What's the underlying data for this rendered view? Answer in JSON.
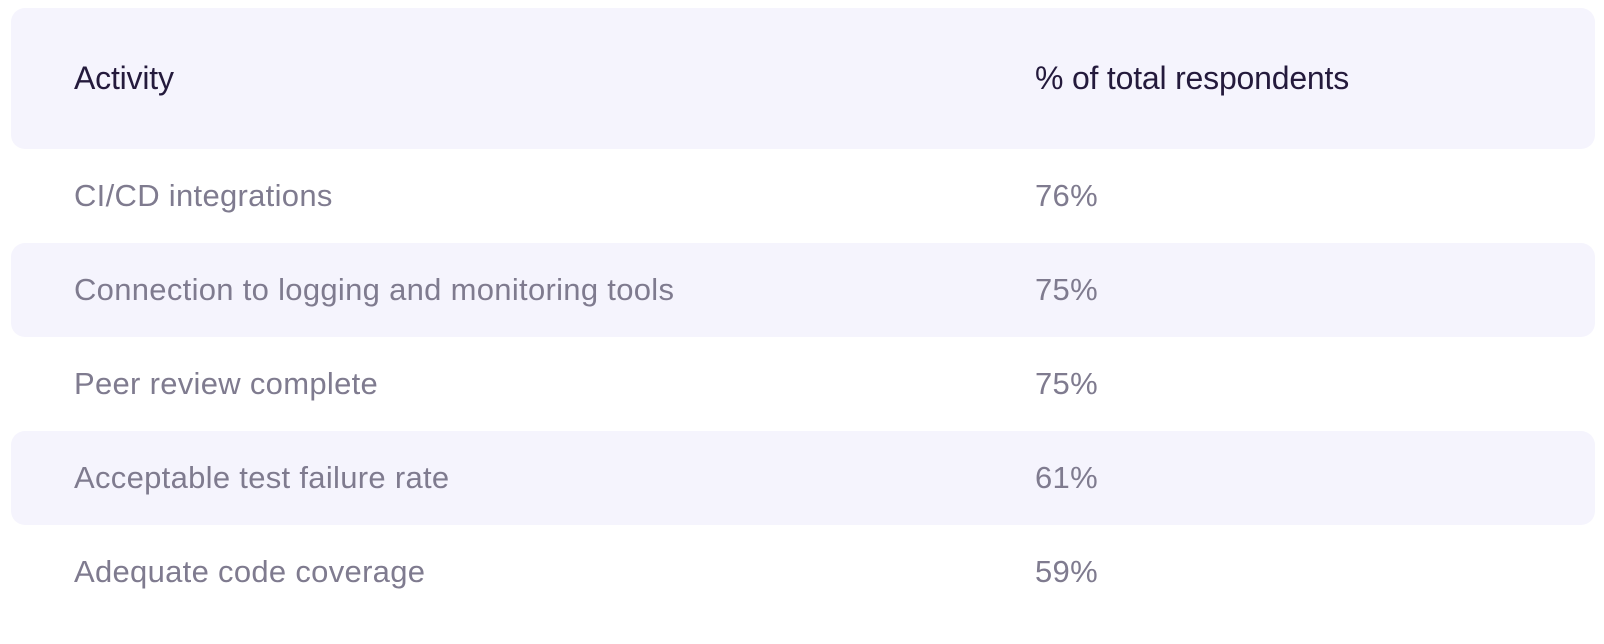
{
  "table": {
    "headers": {
      "activity": "Activity",
      "percent": "% of total respondents"
    },
    "rows": [
      {
        "activity": "CI/CD integrations",
        "percent": "76%"
      },
      {
        "activity": "Connection to logging and monitoring tools",
        "percent": "75%"
      },
      {
        "activity": "Peer review complete",
        "percent": "75%"
      },
      {
        "activity": "Acceptable test failure rate",
        "percent": "61%"
      },
      {
        "activity": "Adequate code coverage",
        "percent": "59%"
      }
    ],
    "colors": {
      "stripe_background": "#f5f4fd",
      "header_text": "#241a3c",
      "body_text": "#7f7b8f"
    }
  }
}
